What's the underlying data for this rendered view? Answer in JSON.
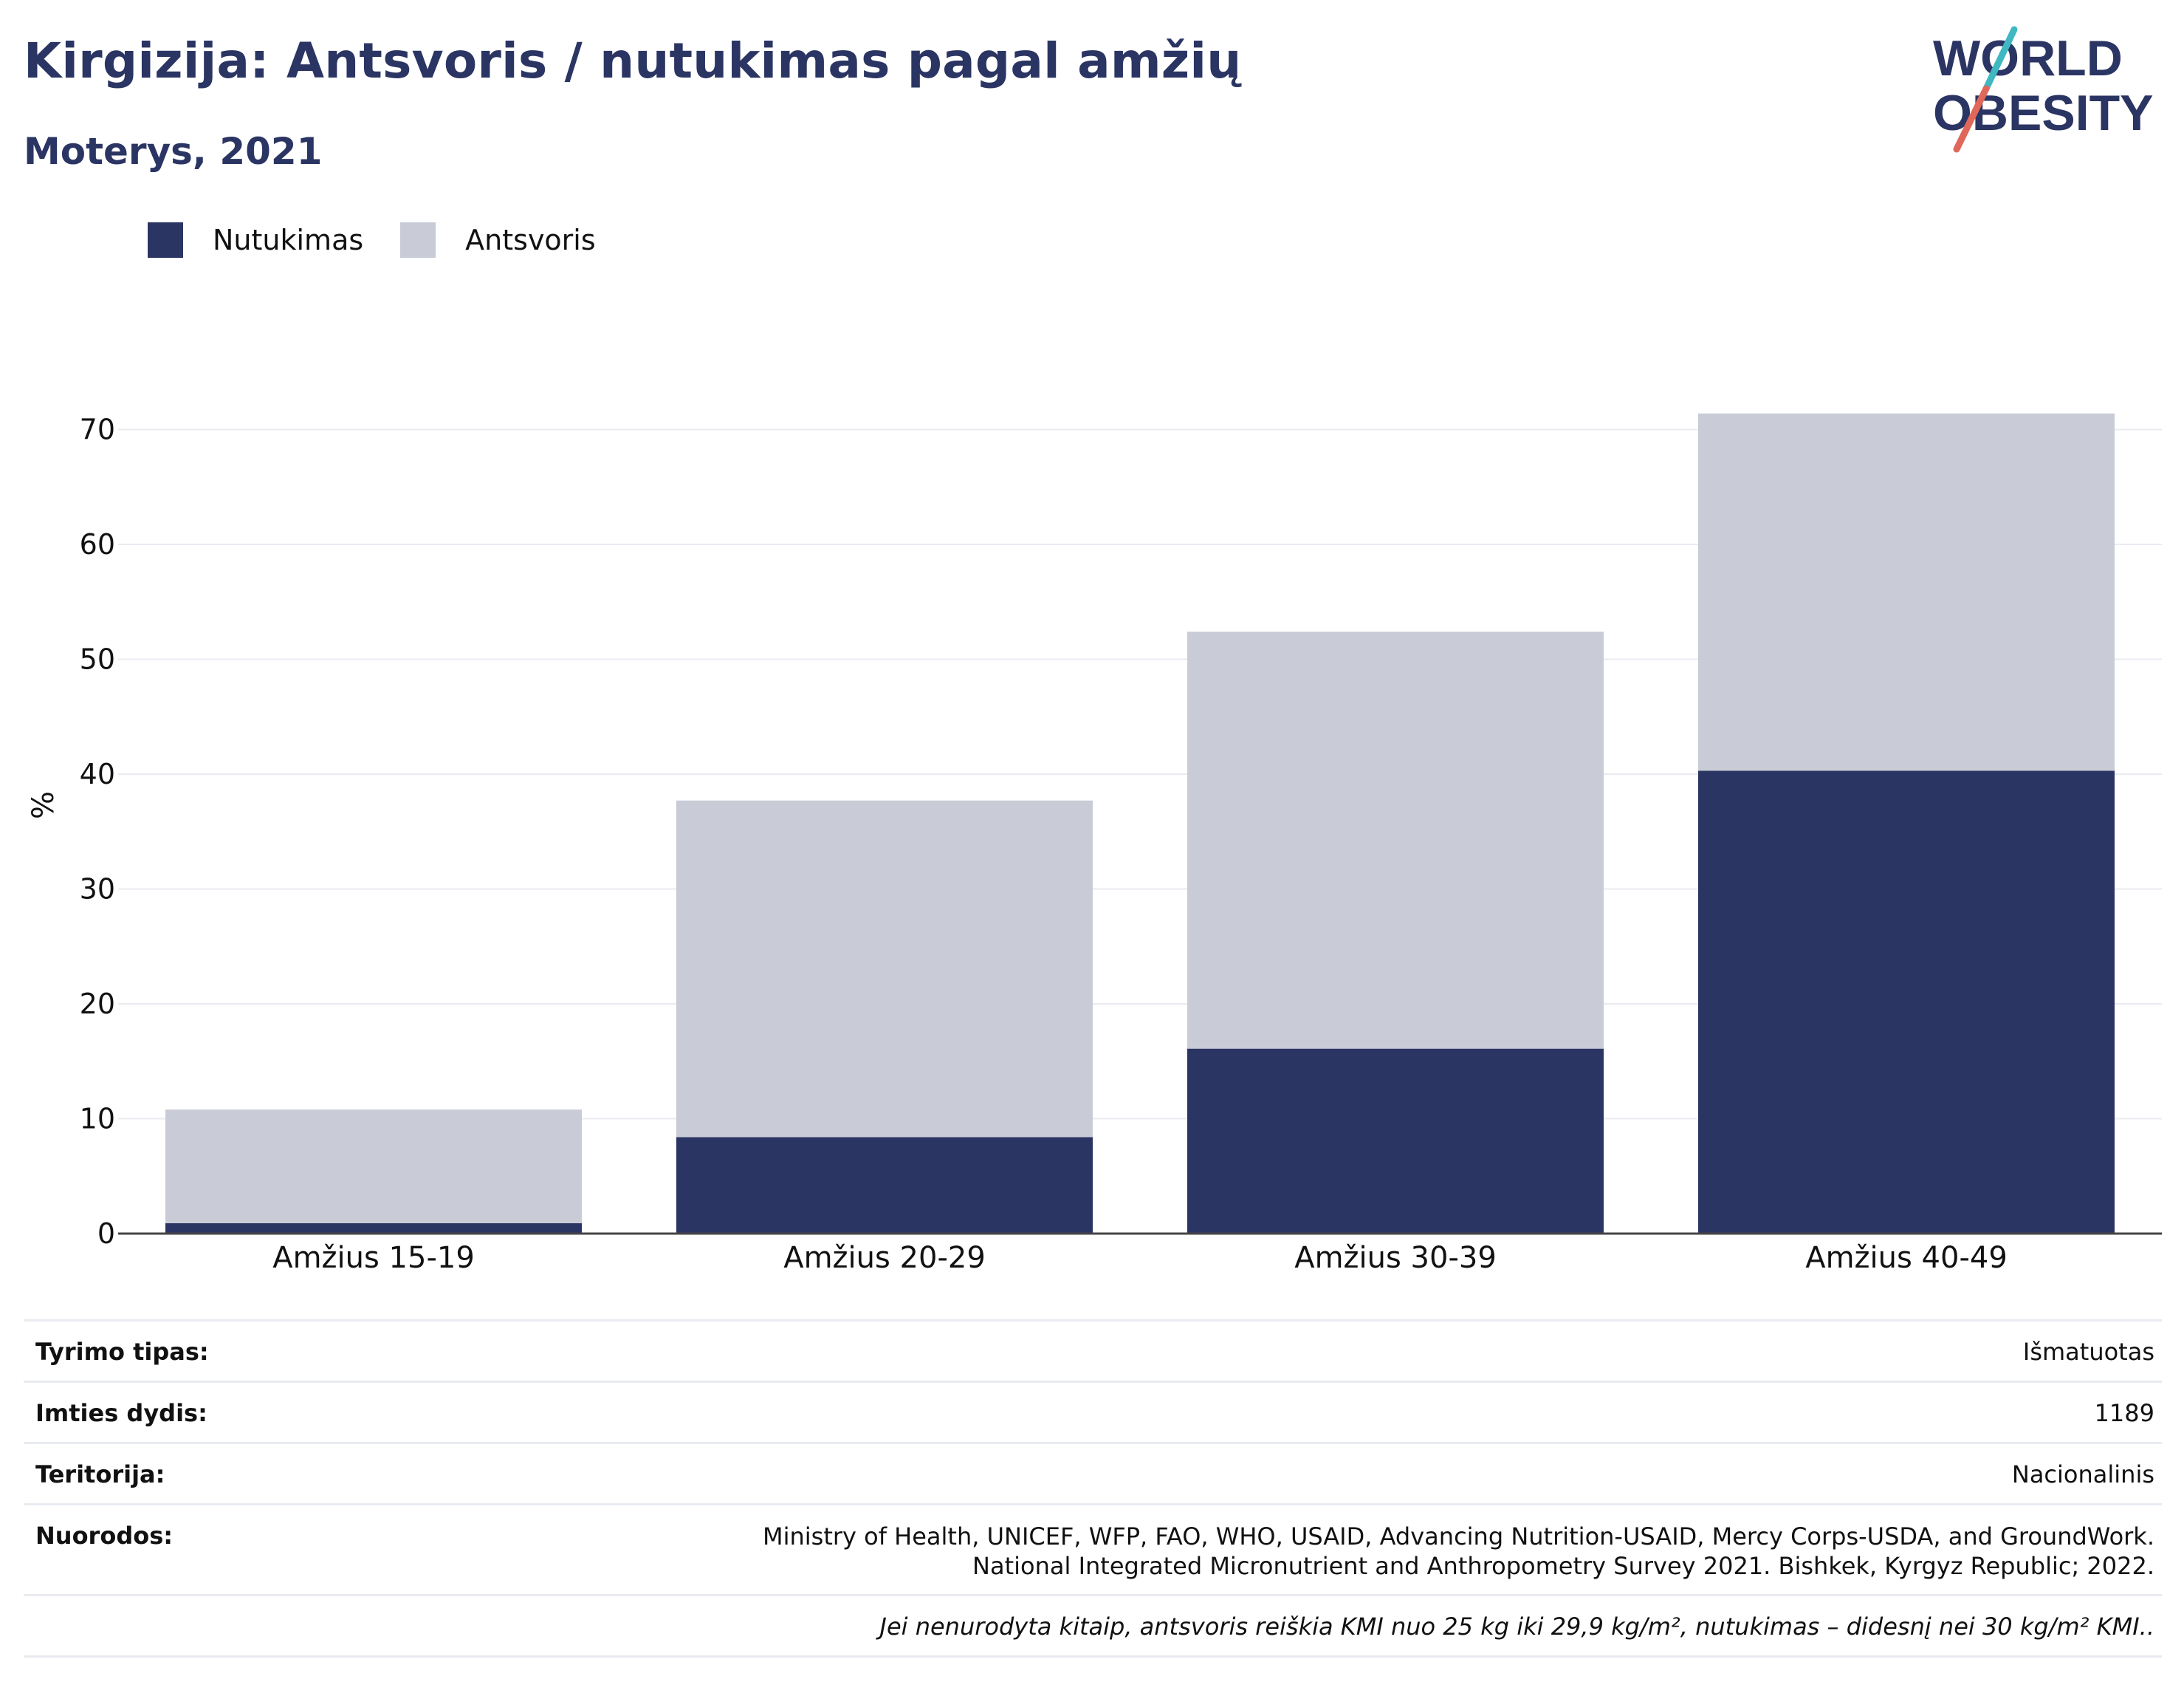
{
  "header": {
    "title": "Kirgizija: Antsvoris / nutukimas pagal amžių",
    "subtitle": "Moterys, 2021"
  },
  "logo": {
    "line1": "WORLD",
    "line2": "OBESITY",
    "colors": {
      "text": "#2b3563",
      "slash_top": "#3fb8c2",
      "slash_bottom": "#e0685a"
    }
  },
  "legend": [
    {
      "label": "Nutukimas",
      "color": "#2b3563"
    },
    {
      "label": "Antsvoris",
      "color": "#c9ccd7"
    }
  ],
  "chart_data": {
    "type": "bar",
    "stacked": true,
    "categories": [
      "Amžius 15-19",
      "Amžius 20-29",
      "Amžius 30-39",
      "Amžius 40-49"
    ],
    "series": [
      {
        "name": "Nutukimas",
        "color": "#2b3563",
        "values": [
          0.9,
          8.4,
          16.1,
          40.3
        ]
      },
      {
        "name": "Antsvoris",
        "color": "#c9ccd7",
        "values": [
          9.9,
          29.3,
          36.3,
          31.1
        ]
      }
    ],
    "totals": [
      10.8,
      37.7,
      52.4,
      71.4
    ],
    "ylabel": "%",
    "xlabel": "",
    "ylim": [
      0,
      75
    ],
    "yticks": [
      0,
      10,
      20,
      30,
      40,
      50,
      60,
      70
    ],
    "ytick_labels": [
      "0",
      "10",
      "20",
      "30",
      "40",
      "50",
      "60",
      "70"
    ],
    "grid": true,
    "legend_position": "top-left"
  },
  "info": {
    "rows": [
      {
        "label": "Tyrimo tipas:",
        "value": "Išmatuotas"
      },
      {
        "label": "Imties dydis:",
        "value": "1189"
      },
      {
        "label": "Teritorija:",
        "value": "Nacionalinis"
      }
    ],
    "refs_label": "Nuorodos:",
    "refs_value": "Ministry of Health, UNICEF, WFP, FAO, WHO, USAID, Advancing Nutrition-USAID, Mercy Corps-USDA, and GroundWork. National Integrated Micronutrient and Anthropometry Survey 2021. Bishkek, Kyrgyz Republic; 2022.",
    "note": "Jei nenurodyta kitaip, antsvoris reiškia KMI nuo 25 kg iki 29,9 kg/m², nutukimas – didesnį nei 30 kg/m² KMI.."
  }
}
